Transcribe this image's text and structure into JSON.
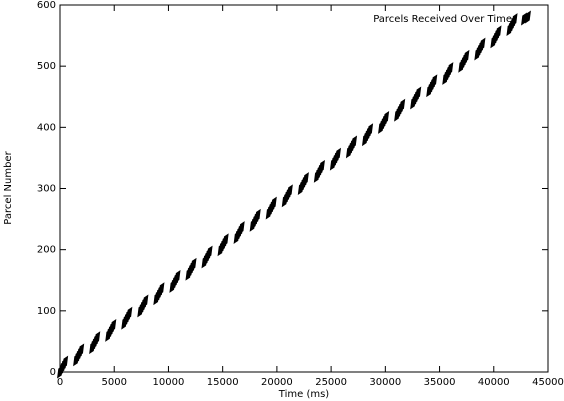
{
  "chart_data": {
    "type": "scatter",
    "ylabel": "Parcel Number",
    "xlabel": "Time (ms)",
    "xlim": [
      0,
      45000
    ],
    "xticks": [
      0,
      5000,
      10000,
      15000,
      20000,
      25000,
      30000,
      35000,
      40000,
      45000
    ],
    "ylim": [
      0,
      600
    ],
    "yticks": [
      0,
      100,
      200,
      300,
      400,
      500,
      600
    ],
    "legend": "top-right",
    "series": [
      {
        "name": "Parcels Received Over Time",
        "color": "#000000",
        "x": [
          0,
          120,
          240,
          360,
          480,
          1480,
          1600,
          1720,
          1840,
          1960,
          2960,
          3080,
          3200,
          3320,
          3440,
          4440,
          4560,
          4680,
          4800,
          4920,
          5920,
          6040,
          6160,
          6280,
          6400,
          7400,
          7520,
          7640,
          7760,
          7880,
          8880,
          9000,
          9120,
          9240,
          9360,
          10360,
          10480,
          10600,
          10720,
          10840,
          11840,
          11960,
          12080,
          12200,
          12320,
          13320,
          13440,
          13560,
          13680,
          13800,
          14800,
          14920,
          15040,
          15160,
          15280,
          16280,
          16400,
          16520,
          16640,
          16760,
          17760,
          17880,
          18000,
          18120,
          18240,
          19240,
          19360,
          19480,
          19600,
          19720,
          20720,
          20840,
          20960,
          21080,
          21200,
          22200,
          22320,
          22440,
          22560,
          22680,
          23680,
          23800,
          23920,
          24040,
          24160,
          25160,
          25280,
          25400,
          25520,
          25640,
          26640,
          26760,
          26880,
          27000,
          27120,
          28120,
          28240,
          28360,
          28480,
          28600,
          29600,
          29720,
          29840,
          29960,
          30080,
          31080,
          31200,
          31320,
          31440,
          31560,
          32560,
          32680,
          32800,
          32920,
          33040,
          34040,
          34160,
          34280,
          34400,
          34520,
          35520,
          35640,
          35760,
          35880,
          36000,
          37000,
          37120,
          37240,
          37360,
          37480,
          38480,
          38600,
          38720,
          38840,
          38960,
          39960,
          40080,
          40200,
          40320,
          40440,
          41440,
          41560,
          41680,
          41800,
          41920
        ],
        "values": [
          0,
          4,
          8,
          12,
          16,
          20,
          24,
          28,
          32,
          36,
          40,
          44,
          48,
          52,
          56,
          60,
          64,
          68,
          72,
          76,
          80,
          84,
          88,
          92,
          96,
          100,
          104,
          108,
          112,
          116,
          120,
          124,
          128,
          132,
          136,
          140,
          144,
          148,
          152,
          156,
          160,
          164,
          168,
          172,
          176,
          180,
          184,
          188,
          192,
          196,
          200,
          204,
          208,
          212,
          216,
          220,
          224,
          228,
          232,
          236,
          240,
          244,
          248,
          252,
          256,
          260,
          264,
          268,
          272,
          276,
          280,
          284,
          288,
          292,
          296,
          300,
          304,
          308,
          312,
          316,
          320,
          324,
          328,
          332,
          336,
          340,
          344,
          348,
          352,
          356,
          360,
          364,
          368,
          372,
          376,
          380,
          384,
          388,
          392,
          396,
          400,
          404,
          408,
          412,
          416,
          420,
          424,
          428,
          432,
          436,
          440,
          444,
          448,
          452,
          456,
          460,
          464,
          468,
          472,
          476,
          480,
          484,
          488,
          492,
          496,
          500,
          504,
          508,
          512,
          516,
          520,
          524,
          528,
          532,
          536,
          540,
          544,
          548,
          552,
          556,
          560,
          564,
          568,
          572,
          576
        ]
      }
    ]
  }
}
